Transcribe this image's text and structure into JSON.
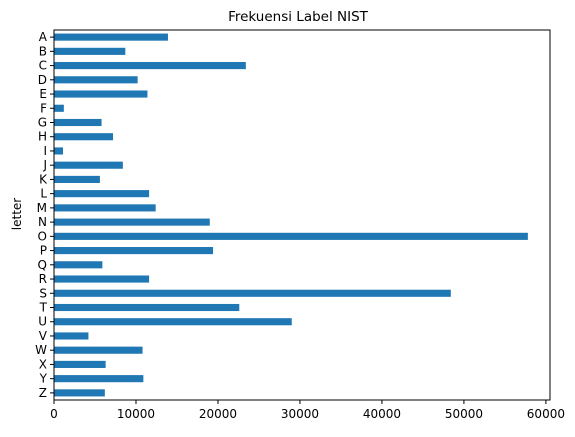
{
  "chart_data": {
    "type": "bar",
    "orientation": "horizontal",
    "title": "Frekuensi Label NIST",
    "xlabel": "",
    "ylabel": "letter",
    "xlim": [
      0,
      60500
    ],
    "xticks": [
      0,
      10000,
      20000,
      30000,
      40000,
      50000,
      60000
    ],
    "grid": false,
    "bar_color": "#1f77b4",
    "categories": [
      "A",
      "B",
      "C",
      "D",
      "E",
      "F",
      "G",
      "H",
      "I",
      "J",
      "K",
      "L",
      "M",
      "N",
      "O",
      "P",
      "Q",
      "R",
      "S",
      "T",
      "U",
      "V",
      "W",
      "X",
      "Y",
      "Z"
    ],
    "values": [
      13900,
      8700,
      23400,
      10200,
      11400,
      1200,
      5800,
      7200,
      1100,
      8400,
      5600,
      11600,
      12400,
      19000,
      57800,
      19400,
      5900,
      11600,
      48400,
      22600,
      29000,
      4200,
      10800,
      6300,
      10900,
      6200
    ]
  }
}
